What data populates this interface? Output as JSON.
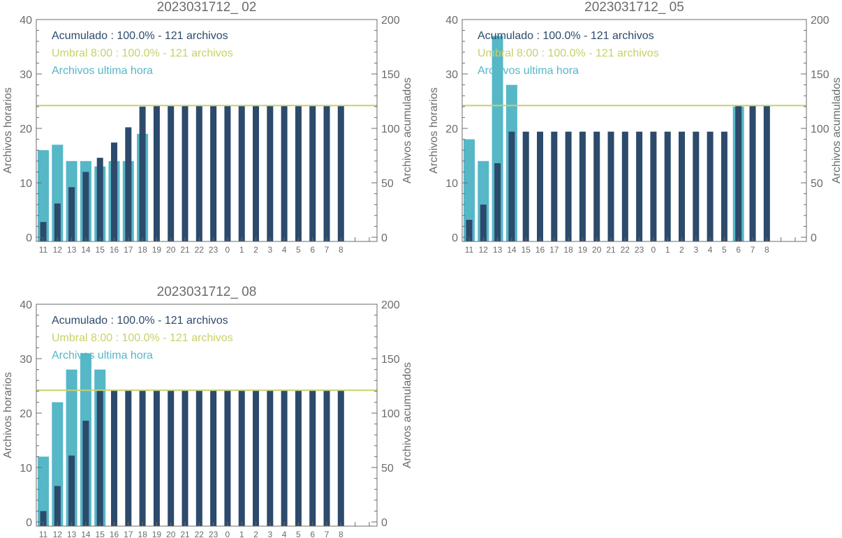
{
  "colors": {
    "hourly": "#56b7c7",
    "cumulative": "#2c4a6b",
    "threshold": "#c8d16a",
    "axis": "#6b6b6b"
  },
  "chart_data": [
    {
      "type": "bar",
      "title": "2023031712_ 02",
      "ylabel": "Archivos horarios",
      "y2label": "Archivos acumulados",
      "ylim": [
        0,
        40
      ],
      "y2lim": [
        0,
        200
      ],
      "yticks": [
        "0",
        "10",
        "20",
        "30",
        "40"
      ],
      "y2ticks": [
        "0",
        "50",
        "100",
        "150",
        "200"
      ],
      "categories": [
        "11",
        "12",
        "13",
        "14",
        "15",
        "16",
        "17",
        "18",
        "19",
        "20",
        "21",
        "22",
        "23",
        "0",
        "1",
        "2",
        "3",
        "4",
        "5",
        "6",
        "7",
        "8"
      ],
      "legend": [
        "Acumulado : 100.0% - 121 archivos",
        "Umbral 8:00 : 100.0% - 121 archivos",
        "Archivos ultima hora"
      ],
      "threshold": 121,
      "series": [
        {
          "name": "Archivos ultima hora",
          "axis": "left",
          "values": [
            16,
            17,
            14,
            14,
            13,
            14,
            14,
            19,
            0,
            0,
            0,
            0,
            0,
            0,
            0,
            0,
            0,
            0,
            0,
            0,
            0,
            0
          ]
        },
        {
          "name": "Acumulado",
          "axis": "right",
          "values": [
            14,
            31,
            46,
            60,
            73,
            87,
            101,
            120,
            121,
            121,
            121,
            121,
            121,
            121,
            121,
            121,
            121,
            121,
            121,
            121,
            121,
            121
          ]
        }
      ]
    },
    {
      "type": "bar",
      "title": "2023031712_ 05",
      "ylabel": "Archivos horarios",
      "y2label": "Archivos acumulados",
      "ylim": [
        0,
        40
      ],
      "y2lim": [
        0,
        200
      ],
      "yticks": [
        "0",
        "10",
        "20",
        "30",
        "40"
      ],
      "y2ticks": [
        "0",
        "50",
        "100",
        "150",
        "200"
      ],
      "categories": [
        "11",
        "12",
        "13",
        "14",
        "15",
        "16",
        "17",
        "18",
        "19",
        "20",
        "21",
        "22",
        "23",
        "0",
        "1",
        "2",
        "3",
        "4",
        "5",
        "6",
        "7",
        "8"
      ],
      "legend": [
        "Acumulado : 100.0% - 121 archivos",
        "Umbral 8:00 : 100.0% - 121 archivos",
        "Archivos ultima hora"
      ],
      "threshold": 121,
      "series": [
        {
          "name": "Archivos ultima hora",
          "axis": "left",
          "values": [
            18,
            14,
            37,
            28,
            0,
            0,
            0,
            0,
            0,
            0,
            0,
            0,
            0,
            0,
            0,
            0,
            0,
            0,
            0,
            24,
            0,
            0
          ]
        },
        {
          "name": "Acumulado",
          "axis": "right",
          "values": [
            16,
            30,
            68,
            97,
            97,
            97,
            97,
            97,
            97,
            97,
            97,
            97,
            97,
            97,
            97,
            97,
            97,
            97,
            97,
            121,
            121,
            121
          ]
        }
      ]
    },
    {
      "type": "bar",
      "title": "2023031712_ 08",
      "ylabel": "Archivos horarios",
      "y2label": "Archivos acumulados",
      "ylim": [
        0,
        40
      ],
      "y2lim": [
        0,
        200
      ],
      "yticks": [
        "0",
        "10",
        "20",
        "30",
        "40"
      ],
      "y2ticks": [
        "0",
        "50",
        "100",
        "150",
        "200"
      ],
      "categories": [
        "11",
        "12",
        "13",
        "14",
        "15",
        "16",
        "17",
        "18",
        "19",
        "20",
        "21",
        "22",
        "23",
        "0",
        "1",
        "2",
        "3",
        "4",
        "5",
        "6",
        "7",
        "8"
      ],
      "legend": [
        "Acumulado : 100.0% - 121 archivos",
        "Umbral 8:00 : 100.0% - 121 archivos",
        "Archivos ultima hora"
      ],
      "threshold": 121,
      "series": [
        {
          "name": "Archivos ultima hora",
          "axis": "left",
          "values": [
            12,
            22,
            28,
            31,
            28,
            0,
            0,
            0,
            0,
            0,
            0,
            0,
            0,
            0,
            0,
            0,
            0,
            0,
            0,
            0,
            0,
            0
          ]
        },
        {
          "name": "Acumulado",
          "axis": "right",
          "values": [
            10,
            33,
            61,
            93,
            121,
            121,
            121,
            121,
            121,
            121,
            121,
            121,
            121,
            121,
            121,
            121,
            121,
            121,
            121,
            121,
            121,
            121
          ]
        }
      ]
    }
  ]
}
